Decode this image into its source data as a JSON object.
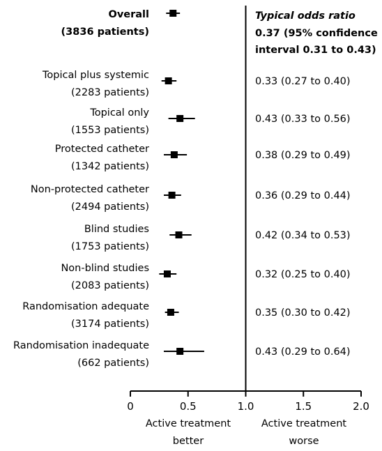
{
  "chart_data": {
    "type": "forest",
    "x_axis": {
      "ticks": [
        "0",
        "0.5",
        "1.0",
        "1.5",
        "2.0"
      ],
      "tick_values": [
        0,
        0.5,
        1.0,
        1.5,
        2.0
      ],
      "xlim": [
        0,
        2.0
      ],
      "reference_line": 1.0,
      "left_caption": [
        "Active treatment",
        "better"
      ],
      "right_caption": [
        "Active treatment",
        "worse"
      ]
    },
    "summary": {
      "label": "Overall",
      "patients": "(3836 patients)",
      "value_title": "Typical odds ratio",
      "value_line2": "0.37 (95% confidence",
      "value_line3": "interval 0.31 to 0.43)",
      "or": 0.37,
      "lower": 0.31,
      "upper": 0.43
    },
    "rows": [
      {
        "label": "Topical plus systemic",
        "patients": "(2283 patients)",
        "value": "0.33 (0.27 to 0.40)",
        "or": 0.33,
        "lower": 0.27,
        "upper": 0.4
      },
      {
        "label": "Topical only",
        "patients": "(1553 patients)",
        "value": "0.43 (0.33 to 0.56)",
        "or": 0.43,
        "lower": 0.33,
        "upper": 0.56
      },
      {
        "label": "Protected catheter",
        "patients": "(1342 patients)",
        "value": "0.38 (0.29 to 0.49)",
        "or": 0.38,
        "lower": 0.29,
        "upper": 0.49
      },
      {
        "label": "Non-protected catheter",
        "patients": "(2494 patients)",
        "value": "0.36 (0.29 to 0.44)",
        "or": 0.36,
        "lower": 0.29,
        "upper": 0.44
      },
      {
        "label": "Blind studies",
        "patients": "(1753 patients)",
        "value": "0.42 (0.34 to 0.53)",
        "or": 0.42,
        "lower": 0.34,
        "upper": 0.53
      },
      {
        "label": "Non-blind studies",
        "patients": "(2083 patients)",
        "value": "0.32 (0.25 to 0.40)",
        "or": 0.32,
        "lower": 0.25,
        "upper": 0.4
      },
      {
        "label": "Randomisation adequate",
        "patients": "(3174 patients)",
        "value": "0.35 (0.30 to 0.42)",
        "or": 0.35,
        "lower": 0.3,
        "upper": 0.42
      },
      {
        "label": "Randomisation inadequate",
        "patients": "(662 patients)",
        "value": "0.43 (0.29 to 0.64)",
        "or": 0.43,
        "lower": 0.29,
        "upper": 0.64
      }
    ]
  }
}
